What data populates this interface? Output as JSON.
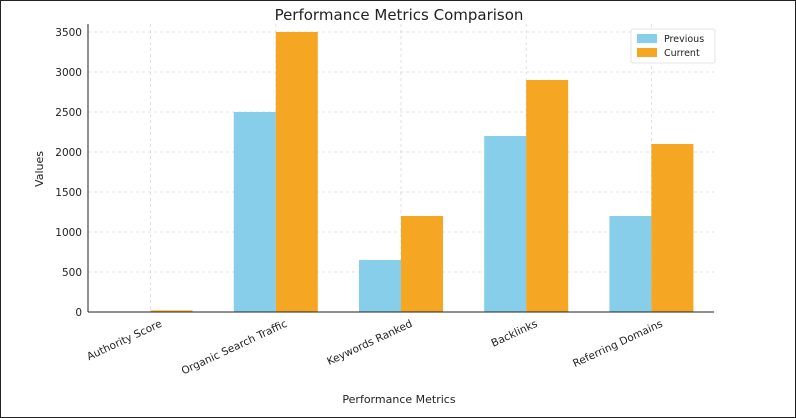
{
  "chart_data": {
    "type": "bar",
    "title": "Performance Metrics Comparison",
    "xlabel": "Performance Metrics",
    "ylabel": "Values",
    "categories": [
      "Authority Score",
      "Organic Search Traffic",
      "Keywords Ranked",
      "Backlinks",
      "Referring Domains"
    ],
    "series": [
      {
        "name": "Previous",
        "color": "#87CEEB",
        "values": [
          0,
          2500,
          650,
          2200,
          1200
        ]
      },
      {
        "name": "Current",
        "color": "#F5A623",
        "values": [
          20,
          3500,
          1200,
          2900,
          2100
        ]
      }
    ],
    "ylim": [
      0,
      3600
    ],
    "yticks": [
      0,
      500,
      1000,
      1500,
      2000,
      2500,
      3000,
      3500
    ],
    "grid": true,
    "legend_position": "top-right"
  }
}
